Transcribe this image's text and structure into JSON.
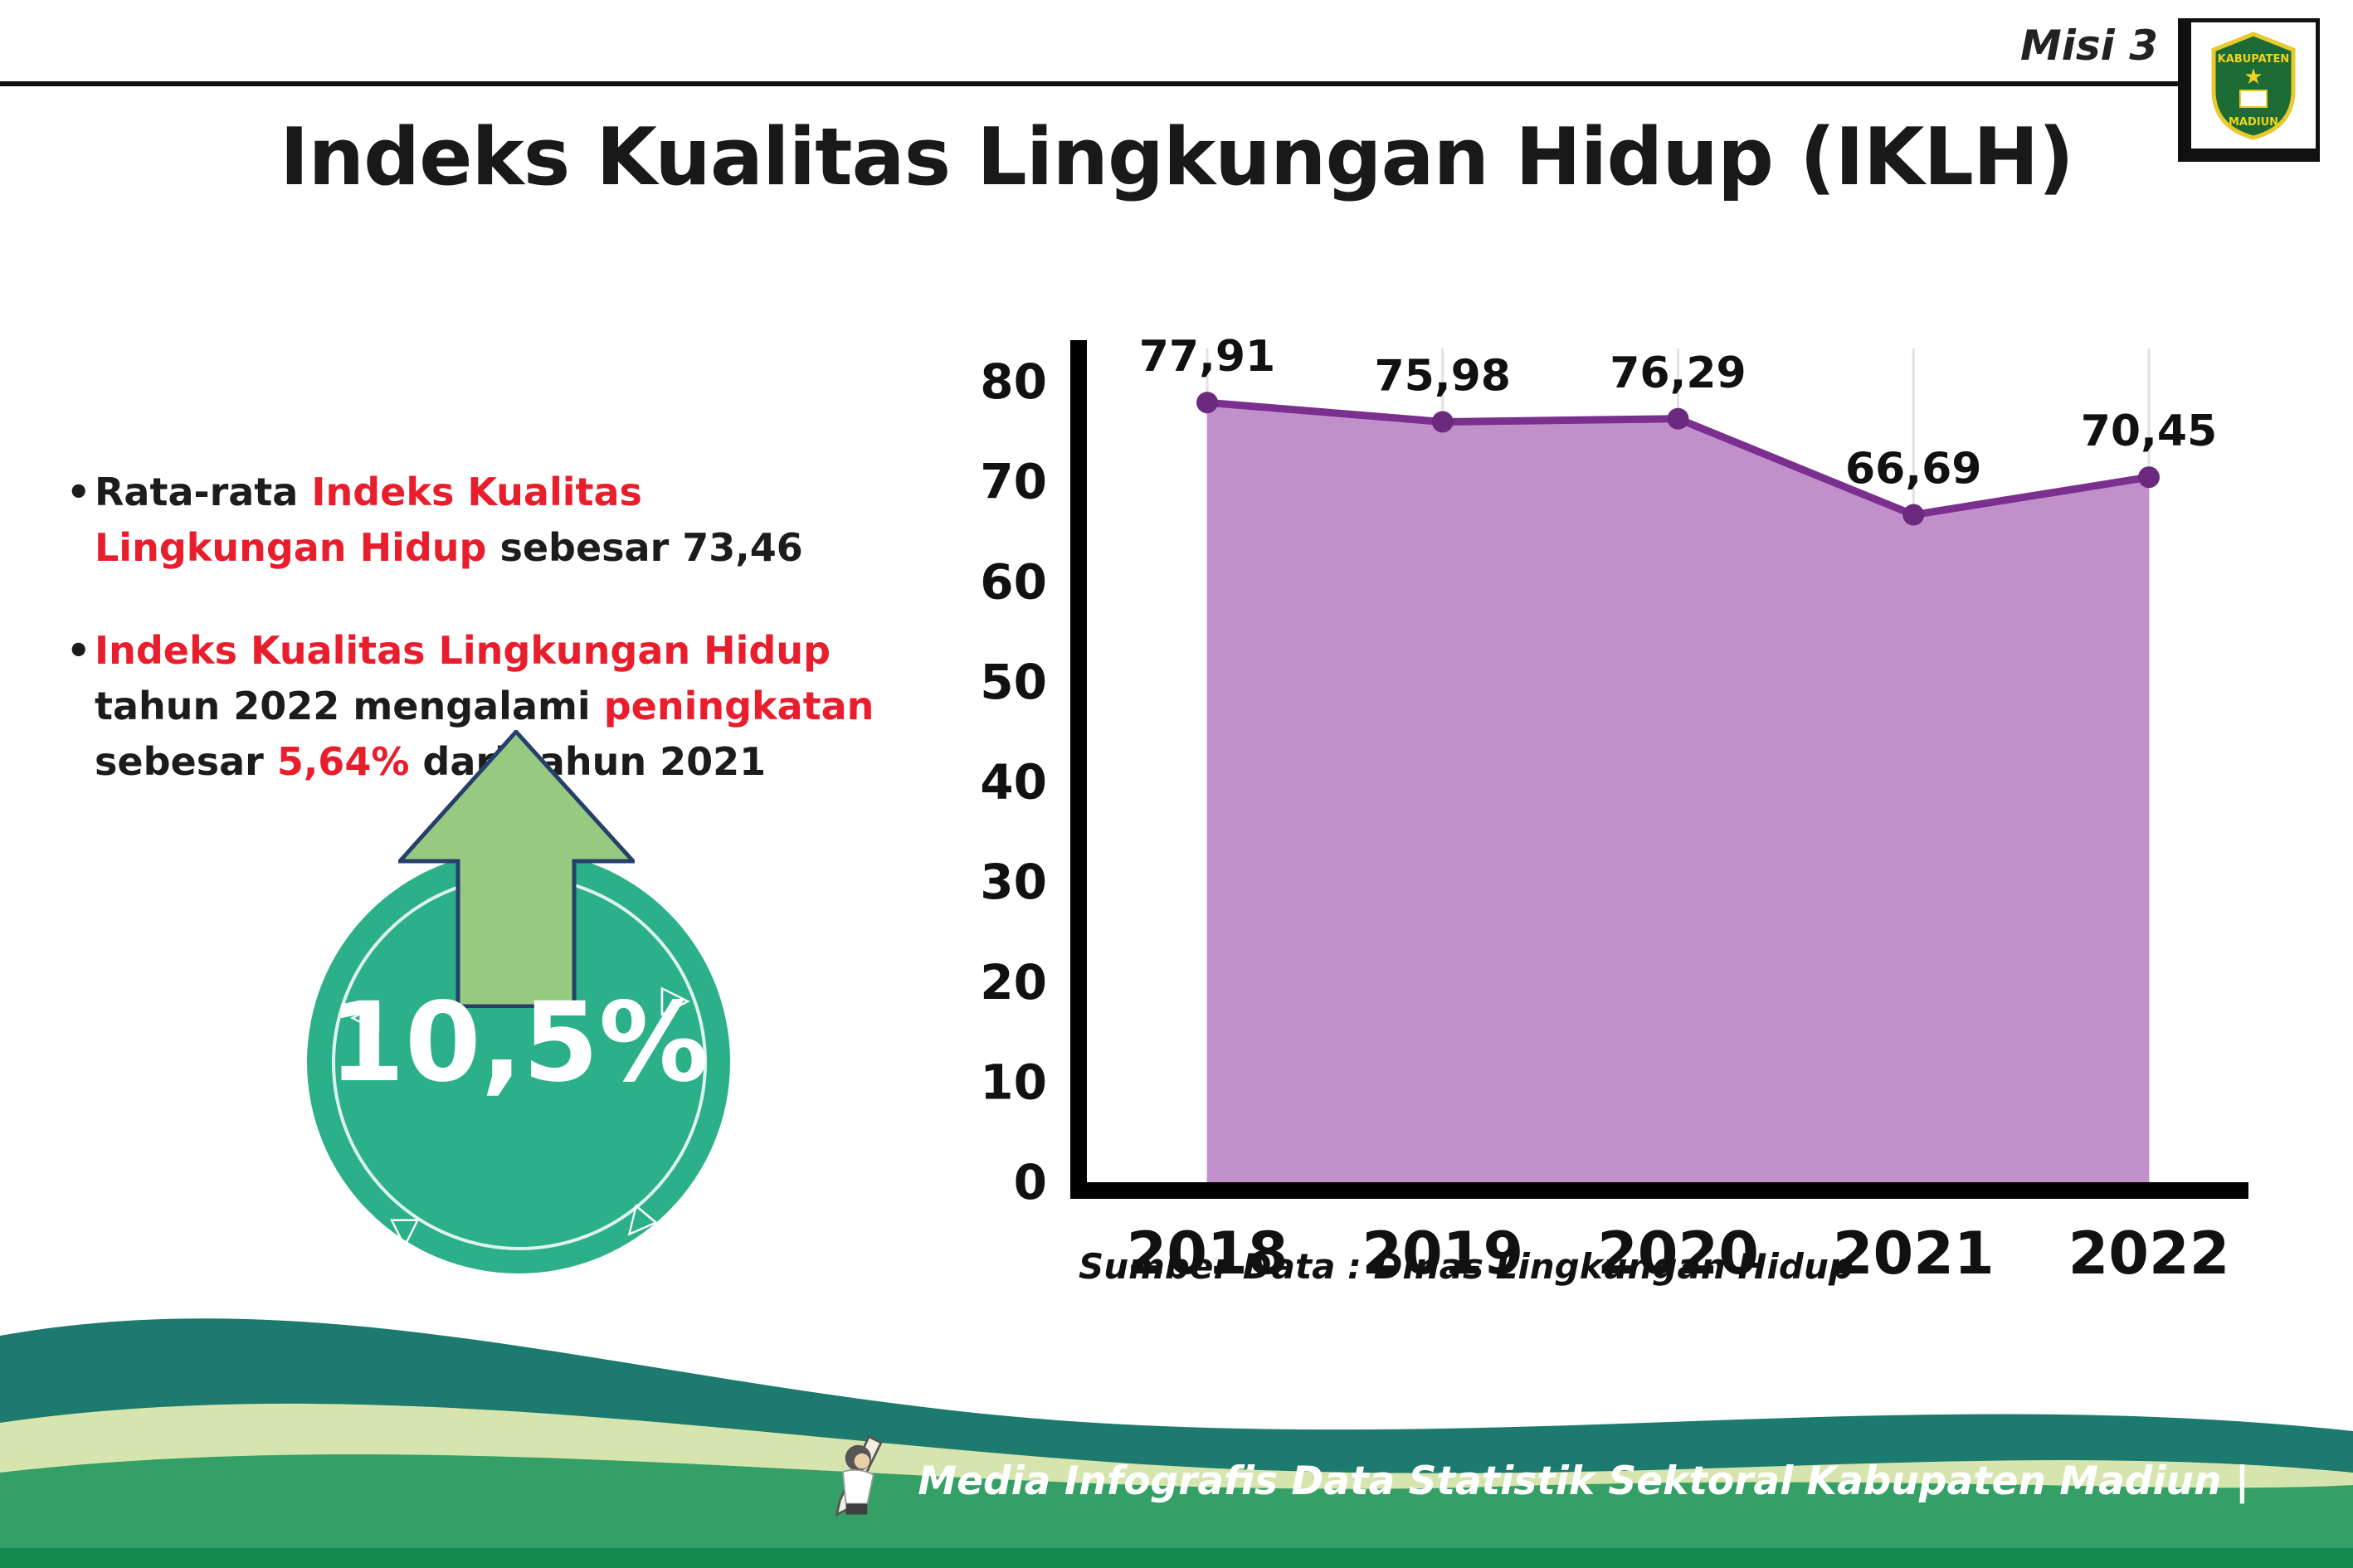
{
  "header": {
    "misi_label": "Misi 3",
    "logo": {
      "top_text": "KABUPATEN",
      "bottom_text": "MADIUN"
    }
  },
  "title": "Indeks Kualitas Lingkungan Hidup (IKLH)",
  "insights": {
    "bullet1": {
      "black1": "Rata-rata ",
      "red1": "Indeks Kualitas Lingkungan Hidup",
      "black2": " sebesar 73,46"
    },
    "bullet2": {
      "red1": "Indeks Kualitas Lingkungan Hidup",
      "black1": " tahun 2022 mengalami ",
      "red2": "peningkatan",
      "black2": " sebesar ",
      "red3": "5,64%",
      "black3": " dari tahun 2021"
    }
  },
  "badge": {
    "value": "10,5%",
    "circle_color": "#2bb08a",
    "arrow_color": "#97ca80",
    "arrow_outline": "#27406b"
  },
  "icons": {
    "triangle_left": "◁",
    "triangle_right": "▷",
    "triangle_down": "▽",
    "star": "★"
  },
  "chart_data": {
    "type": "area",
    "categories": [
      "2018",
      "2019",
      "2020",
      "2021",
      "2022"
    ],
    "values": [
      77.91,
      75.98,
      76.29,
      66.69,
      70.45
    ],
    "value_labels": [
      "77,91",
      "75,98",
      "76,29",
      "66,69",
      "70,45"
    ],
    "title": "",
    "xlabel": "",
    "ylabel": "",
    "ylim": [
      0,
      80
    ],
    "ytick_step": 10,
    "grid": "vertical",
    "legend": "none",
    "colors": {
      "area": "#c190cb",
      "line": "#7b2f8e",
      "point": "#6b2a7e",
      "axis": "#000000",
      "grid": "#e2e2e2"
    },
    "source_note": "Sumber Data : Dinas Lingkungan Hidup"
  },
  "footer": {
    "caption": "Media Infografis Data Statistik Sektoral Kabupaten Madiun |",
    "colors": {
      "teal": "#1d7a6e",
      "pale": "#d6e4ad",
      "green": "#34a065",
      "dark": "#128a52"
    }
  }
}
